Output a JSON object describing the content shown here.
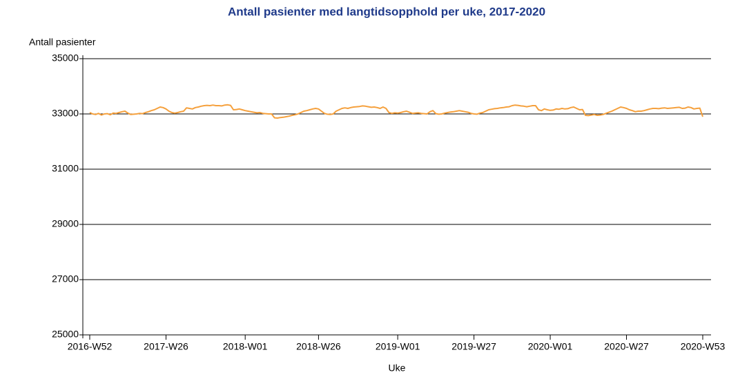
{
  "chart_data": {
    "type": "line",
    "title": "Antall pasienter med langtidsopphold per uke, 2017-2020",
    "y_label": "Antall pasienter",
    "x_label": "Uke",
    "ylim": [
      25000,
      35000
    ],
    "yticks": [
      25000,
      27000,
      29000,
      31000,
      33000,
      35000
    ],
    "grid": true,
    "categories": [
      "2016-W52",
      null,
      null,
      null,
      null,
      null,
      null,
      null,
      null,
      null,
      null,
      null,
      null,
      null,
      null,
      null,
      null,
      null,
      null,
      null,
      null,
      null,
      null,
      null,
      null,
      null,
      "2017-W26",
      null,
      null,
      null,
      null,
      null,
      null,
      null,
      null,
      null,
      null,
      null,
      null,
      null,
      null,
      null,
      null,
      null,
      null,
      null,
      null,
      null,
      null,
      null,
      null,
      null,
      null,
      "2018-W01",
      null,
      null,
      null,
      null,
      null,
      null,
      null,
      null,
      null,
      null,
      null,
      null,
      null,
      null,
      null,
      null,
      null,
      null,
      null,
      null,
      null,
      null,
      null,
      null,
      "2018-W26",
      null,
      null,
      null,
      null,
      null,
      null,
      null,
      null,
      null,
      null,
      null,
      null,
      null,
      null,
      null,
      null,
      null,
      null,
      null,
      null,
      null,
      null,
      null,
      null,
      null,
      null,
      "2019-W01",
      null,
      null,
      null,
      null,
      null,
      null,
      null,
      null,
      null,
      null,
      null,
      null,
      null,
      null,
      null,
      null,
      null,
      null,
      null,
      null,
      null,
      null,
      null,
      null,
      null,
      "2019-W27",
      null,
      null,
      null,
      null,
      null,
      null,
      null,
      null,
      null,
      null,
      null,
      null,
      null,
      null,
      null,
      null,
      null,
      null,
      null,
      null,
      null,
      null,
      null,
      null,
      null,
      "2020-W01",
      null,
      null,
      null,
      null,
      null,
      null,
      null,
      null,
      null,
      null,
      null,
      null,
      null,
      null,
      null,
      null,
      null,
      null,
      null,
      null,
      null,
      null,
      null,
      null,
      null,
      "2020-W27",
      null,
      null,
      null,
      null,
      null,
      null,
      null,
      null,
      null,
      null,
      null,
      null,
      null,
      null,
      null,
      null,
      null,
      null,
      null,
      null,
      null,
      null,
      null,
      null,
      null,
      "2020-W53"
    ],
    "series": [
      {
        "name": "Antall pasienter",
        "color": "#f5a03c",
        "values": [
          33050,
          33000,
          32980,
          33020,
          32960,
          33000,
          33010,
          32970,
          33030,
          33020,
          33050,
          33080,
          33100,
          33030,
          32980,
          32990,
          33000,
          33020,
          33010,
          33050,
          33080,
          33120,
          33150,
          33200,
          33250,
          33230,
          33180,
          33100,
          33050,
          33030,
          33050,
          33080,
          33100,
          33220,
          33200,
          33180,
          33230,
          33250,
          33280,
          33300,
          33310,
          33300,
          33320,
          33300,
          33300,
          33290,
          33320,
          33330,
          33310,
          33150,
          33160,
          33180,
          33150,
          33120,
          33100,
          33080,
          33060,
          33040,
          33050,
          33020,
          33010,
          33000,
          33000,
          32860,
          32850,
          32870,
          32880,
          32900,
          32920,
          32950,
          32970,
          33000,
          33050,
          33100,
          33120,
          33150,
          33180,
          33200,
          33180,
          33100,
          33020,
          32990,
          32980,
          33000,
          33100,
          33150,
          33200,
          33220,
          33200,
          33230,
          33250,
          33260,
          33270,
          33290,
          33280,
          33260,
          33240,
          33250,
          33230,
          33200,
          33250,
          33200,
          33050,
          33020,
          33040,
          33030,
          33050,
          33080,
          33100,
          33060,
          33020,
          33030,
          33040,
          33020,
          33010,
          33000,
          33080,
          33120,
          33010,
          32990,
          33000,
          33030,
          33050,
          33070,
          33080,
          33100,
          33120,
          33100,
          33080,
          33060,
          33020,
          33000,
          32990,
          33030,
          33050,
          33100,
          33150,
          33170,
          33190,
          33200,
          33220,
          33230,
          33250,
          33260,
          33300,
          33320,
          33310,
          33290,
          33280,
          33260,
          33280,
          33300,
          33300,
          33150,
          33120,
          33180,
          33150,
          33130,
          33140,
          33180,
          33170,
          33200,
          33180,
          33190,
          33230,
          33250,
          33200,
          33150,
          33160,
          32950,
          32940,
          32960,
          32980,
          32950,
          32960,
          32980,
          33020,
          33060,
          33100,
          33150,
          33200,
          33250,
          33230,
          33200,
          33150,
          33120,
          33080,
          33100,
          33100,
          33120,
          33150,
          33180,
          33200,
          33200,
          33190,
          33210,
          33220,
          33200,
          33210,
          33220,
          33230,
          33240,
          33200,
          33210,
          33250,
          33230,
          33180,
          33200,
          33210,
          32900
        ]
      }
    ]
  }
}
